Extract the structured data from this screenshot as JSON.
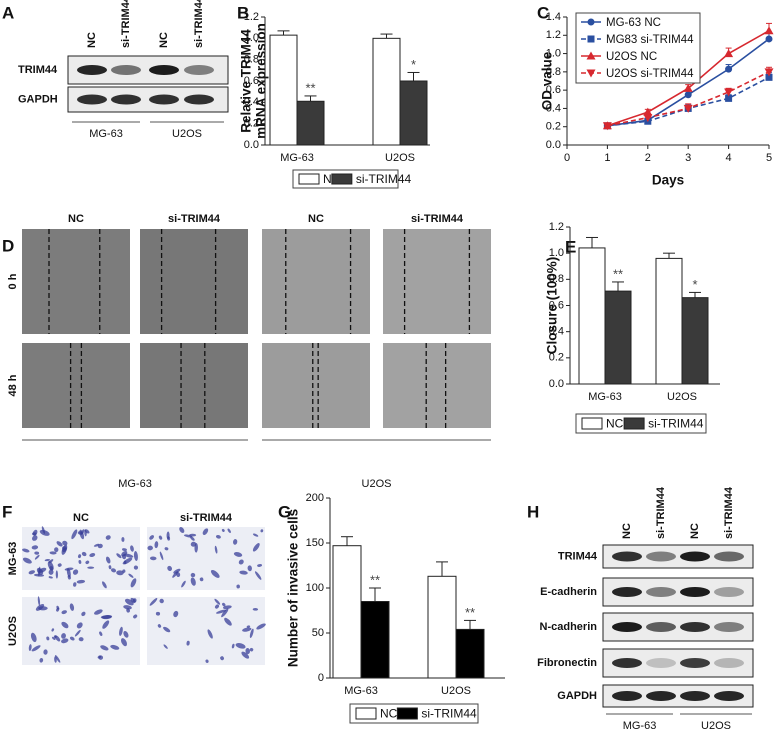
{
  "chart_data": [
    {
      "type": "bar",
      "panel": "B",
      "ylabel": [
        "Relative TRIM44",
        "mRNA expression"
      ],
      "categories": [
        "MG-63",
        "U2OS"
      ],
      "series": [
        {
          "name": "NC",
          "color": "#ffffff",
          "values": [
            1.03,
            1.0
          ],
          "errors": [
            0.04,
            0.04
          ]
        },
        {
          "name": "si-TRIM44",
          "color": "#3a3a3a",
          "values": [
            0.41,
            0.6
          ],
          "errors": [
            0.05,
            0.08
          ],
          "annotations": [
            "**",
            "*"
          ]
        }
      ],
      "ylim": [
        0,
        1.2
      ],
      "yticks": [
        {
          "value": 0,
          "label": "0.0"
        },
        0.2,
        0.4,
        0.6,
        0.8,
        {
          "value": 1,
          "label": "1.0"
        },
        1.2
      ]
    },
    {
      "type": "line",
      "panel": "C",
      "xlabel": "Days",
      "ylabel": "OD value",
      "legend": "top-left",
      "x": [
        1,
        2,
        3,
        4,
        5
      ],
      "series": [
        {
          "name": "MG-63 NC",
          "color": "#2a4fa0",
          "dash": false,
          "marker": "circle",
          "values": [
            0.21,
            0.27,
            0.55,
            0.83,
            1.16
          ],
          "errors": [
            0.01,
            0.02,
            0.05,
            0.05,
            0.06
          ]
        },
        {
          "name": "MG83 si-TRIM44",
          "color": "#2a4fa0",
          "dash": true,
          "marker": "square",
          "values": [
            0.21,
            0.26,
            0.4,
            0.51,
            0.74
          ],
          "errors": [
            0.01,
            0.02,
            0.04,
            0.04,
            0.05
          ]
        },
        {
          "name": "U2OS NC",
          "color": "#d7282f",
          "dash": false,
          "marker": "triangle",
          "values": [
            0.21,
            0.36,
            0.62,
            1.0,
            1.25
          ],
          "errors": [
            0.01,
            0.03,
            0.04,
            0.06,
            0.08
          ]
        },
        {
          "name": "U2OS si-TRIM44",
          "color": "#d7282f",
          "dash": true,
          "marker": "triangle-down",
          "values": [
            0.21,
            0.3,
            0.4,
            0.58,
            0.8
          ],
          "errors": [
            0.01,
            0.02,
            0.05,
            0.04,
            0.05
          ]
        }
      ],
      "xlim": [
        0,
        5
      ],
      "xticks": [
        0,
        1,
        2,
        3,
        4,
        5
      ],
      "ylim": [
        0,
        1.4
      ],
      "yticks": [
        {
          "value": 0,
          "label": "0.0"
        },
        0.2,
        0.4,
        0.6,
        0.8,
        {
          "value": 1,
          "label": "1.0"
        },
        1.2,
        1.4
      ]
    },
    {
      "type": "bar",
      "panel": "E",
      "ylabel": [
        "Closure (100%)"
      ],
      "categories": [
        "MG-63",
        "U2OS"
      ],
      "series": [
        {
          "name": "NC",
          "color": "#ffffff",
          "values": [
            1.04,
            0.96
          ],
          "errors": [
            0.08,
            0.04
          ]
        },
        {
          "name": "si-TRIM44",
          "color": "#3a3a3a",
          "values": [
            0.71,
            0.66
          ],
          "errors": [
            0.07,
            0.04
          ],
          "annotations": [
            "**",
            "*"
          ]
        }
      ],
      "ylim": [
        0,
        1.2
      ],
      "yticks": [
        {
          "value": 0,
          "label": "0.0"
        },
        0.2,
        0.4,
        0.6,
        0.8,
        {
          "value": 1,
          "label": "1.0"
        },
        1.2
      ]
    },
    {
      "type": "bar",
      "panel": "G",
      "ylabel": [
        "Number of invasive cells"
      ],
      "categories": [
        "MG-63",
        "U2OS"
      ],
      "series": [
        {
          "name": "NC",
          "color": "#ffffff",
          "values": [
            147,
            113
          ],
          "errors": [
            10,
            16
          ]
        },
        {
          "name": "si-TRIM44",
          "color": "#000000",
          "values": [
            85,
            54
          ],
          "errors": [
            15,
            10
          ],
          "annotations": [
            "**",
            "**"
          ]
        }
      ],
      "ylim": [
        0,
        200
      ],
      "yticks": [
        0,
        50,
        100,
        150,
        200
      ]
    }
  ],
  "blot_a": {
    "panel": "A",
    "lanes": [
      "NC",
      "si-TRIM44",
      "NC",
      "si-TRIM44"
    ],
    "rows": [
      "TRIM44",
      "GAPDH"
    ],
    "groups": [
      "MG-63",
      "U2OS"
    ]
  },
  "wound_d": {
    "panel": "D",
    "columns": [
      "NC",
      "si-TRIM44",
      "NC",
      "si-TRIM44"
    ],
    "rows": [
      "0 h",
      "48 h"
    ],
    "groups": [
      "MG-63",
      "U2OS"
    ]
  },
  "transwell_f": {
    "panel": "F",
    "columns": [
      "NC",
      "si-TRIM44"
    ],
    "rows": [
      "MG-63",
      "U2OS"
    ]
  },
  "blot_h": {
    "panel": "H",
    "lanes": [
      "NC",
      "si-TRIM44",
      "NC",
      "si-TRIM44"
    ],
    "rows": [
      "TRIM44",
      "E-cadherin",
      "N-cadherin",
      "Fibronectin",
      "GAPDH"
    ],
    "groups": [
      "MG-63",
      "U2OS"
    ]
  }
}
